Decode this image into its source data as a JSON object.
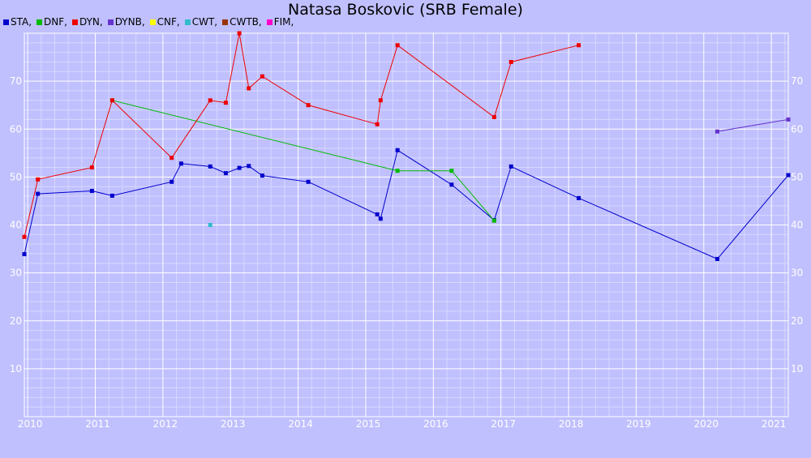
{
  "chart_data": {
    "type": "line",
    "title": "Natasa Boskovic (SRB Female)",
    "xlabel": "",
    "ylabel": "",
    "xlim": [
      2009.95,
      2021.25
    ],
    "ylim": [
      0,
      80
    ],
    "x_ticks": [
      "2010",
      "2011",
      "2012",
      "2013",
      "2014",
      "2015",
      "2016",
      "2017",
      "2018",
      "2019",
      "2020",
      "2021"
    ],
    "y_ticks": [
      "10",
      "20",
      "30",
      "40",
      "50",
      "60",
      "70"
    ],
    "grid": true,
    "legend": "top-left",
    "legend_entries": [
      {
        "name": "STA,",
        "color": "#0000cc"
      },
      {
        "name": "DNF,",
        "color": "#00bb00"
      },
      {
        "name": "DYN,",
        "color": "#ee0000"
      },
      {
        "name": "DYNB,",
        "color": "#6633cc"
      },
      {
        "name": "CNF,",
        "color": "#ffff00"
      },
      {
        "name": "CWT,",
        "color": "#33bbcc"
      },
      {
        "name": "CWTB,",
        "color": "#993300"
      },
      {
        "name": "FIM,",
        "color": "#ff00cc"
      }
    ],
    "series": [
      {
        "name": "STA",
        "color": "#0000cc",
        "points": [
          [
            2009.95,
            33.9
          ],
          [
            2010.15,
            46.5
          ],
          [
            2010.95,
            47.1
          ],
          [
            2011.25,
            46.1
          ],
          [
            2012.13,
            49.0
          ],
          [
            2012.27,
            52.8
          ],
          [
            2012.7,
            52.2
          ],
          [
            2012.93,
            50.8
          ],
          [
            2013.13,
            51.9
          ],
          [
            2013.27,
            52.3
          ],
          [
            2013.47,
            50.3
          ],
          [
            2014.15,
            49.0
          ],
          [
            2015.17,
            42.2
          ],
          [
            2015.22,
            41.3
          ],
          [
            2015.47,
            55.6
          ],
          [
            2016.27,
            48.4
          ],
          [
            2016.9,
            41.0
          ],
          [
            2017.15,
            52.2
          ],
          [
            2018.15,
            45.6
          ],
          [
            2020.2,
            32.9
          ],
          [
            2021.25,
            50.4
          ]
        ]
      },
      {
        "name": "DNF",
        "color": "#00bb00",
        "points": [
          [
            2011.25,
            66.0
          ],
          [
            2015.47,
            51.3
          ],
          [
            2016.27,
            51.3
          ],
          [
            2016.9,
            40.9
          ]
        ]
      },
      {
        "name": "DYN",
        "color": "#ee0000",
        "points": [
          [
            2009.95,
            37.5
          ],
          [
            2010.15,
            49.5
          ],
          [
            2010.95,
            52.0
          ],
          [
            2011.25,
            66.0
          ],
          [
            2012.13,
            54.0
          ],
          [
            2012.7,
            66.0
          ],
          [
            2012.93,
            65.5
          ],
          [
            2013.13,
            80.0
          ],
          [
            2013.27,
            68.5
          ],
          [
            2013.47,
            71.0
          ],
          [
            2014.15,
            65.0
          ],
          [
            2015.17,
            61.0
          ],
          [
            2015.22,
            66.0
          ],
          [
            2015.47,
            77.5
          ],
          [
            2016.9,
            62.5
          ],
          [
            2017.15,
            74.0
          ],
          [
            2018.15,
            77.5
          ]
        ]
      },
      {
        "name": "DYNB",
        "color": "#6633cc",
        "points": [
          [
            2020.2,
            59.5
          ],
          [
            2021.25,
            62.0
          ]
        ]
      },
      {
        "name": "CWT",
        "color": "#33bbcc",
        "points": [
          [
            2012.7,
            40.0
          ]
        ]
      }
    ]
  }
}
